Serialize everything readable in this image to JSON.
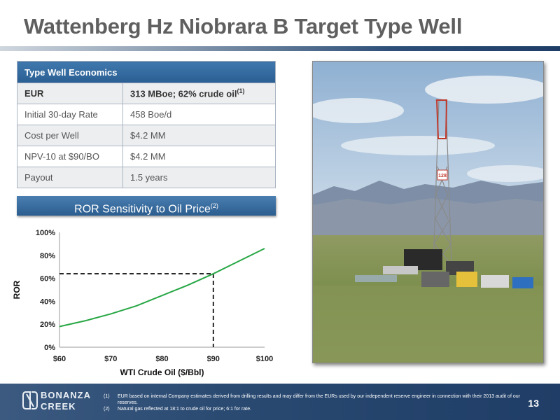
{
  "page": {
    "title": "Wattenberg Hz Niobrara B Target Type Well",
    "page_number": "13"
  },
  "economics": {
    "header": "Type Well Economics",
    "rows": [
      {
        "label": "EUR",
        "value": "313 MBoe;  62% crude oil",
        "sup": "(1)"
      },
      {
        "label": "Initial 30-day Rate",
        "value": "458 Boe/d",
        "sup": ""
      },
      {
        "label": "Cost per Well",
        "value": "$4.2 MM",
        "sup": ""
      },
      {
        "label": "NPV-10 at $90/BO",
        "value": "$4.2 MM",
        "sup": ""
      },
      {
        "label": "Payout",
        "value": "1.5 years",
        "sup": ""
      }
    ]
  },
  "ror_banner": {
    "text": "ROR Sensitivity to Oil Price",
    "sup": "(2)"
  },
  "chart_data": {
    "type": "line",
    "title": "",
    "xlabel": "WTI Crude Oil ($/Bbl)",
    "ylabel": "ROR",
    "xlim": [
      60,
      100
    ],
    "ylim": [
      0,
      100
    ],
    "x_ticks": [
      "$60",
      "$70",
      "$80",
      "$90",
      "$100"
    ],
    "y_ticks": [
      "0%",
      "20%",
      "40%",
      "60%",
      "80%",
      "100%"
    ],
    "series": [
      {
        "x": [
          60,
          65,
          70,
          75,
          80,
          85,
          90,
          95,
          100
        ],
        "y": [
          18,
          23,
          29,
          36,
          45,
          54,
          64,
          75,
          86
        ],
        "color": "#27a744"
      }
    ],
    "reference": {
      "x": 90,
      "y": 64
    },
    "grid": false
  },
  "footer": {
    "logo_line1": "BONANZA",
    "logo_line2": "CREEK",
    "notes": [
      {
        "num": "(1)",
        "text": "EUR based on internal Company estimates derived from drilling results and may differ from the EURs used by our independent reserve engineer in connection with their 2013 audit of our reserves."
      },
      {
        "num": "(2)",
        "text": "Natural gas reflected at 18:1 to crude oil for price; 6:1 for rate."
      }
    ]
  },
  "photo": {
    "rig_number": "128"
  }
}
